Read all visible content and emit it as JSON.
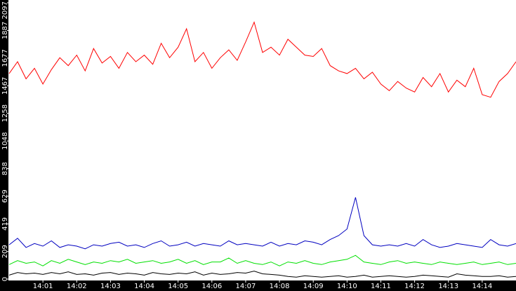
{
  "chart_data": {
    "type": "line",
    "categories": [
      null,
      null,
      null,
      null,
      "14:01",
      null,
      null,
      null,
      "14:02",
      null,
      null,
      null,
      "14:03",
      null,
      null,
      null,
      "14:04",
      null,
      null,
      null,
      "14:05",
      null,
      null,
      null,
      "14:06",
      null,
      null,
      null,
      "14:07",
      null,
      null,
      null,
      "14:08",
      null,
      null,
      null,
      "14:09",
      null,
      null,
      null,
      "14:10",
      null,
      null,
      null,
      "14:11",
      null,
      null,
      null,
      "14:12",
      null,
      null,
      null,
      "14:13",
      null,
      null,
      null,
      "14:14",
      null,
      null,
      null,
      null
    ],
    "ylim": [
      0,
      2097
    ],
    "yticks": [
      0,
      209,
      419,
      629,
      838,
      1048,
      1258,
      1467,
      1677,
      1887,
      2097
    ],
    "series": [
      {
        "color": "#ff0000",
        "values": [
          1560,
          1650,
          1520,
          1600,
          1480,
          1590,
          1680,
          1620,
          1700,
          1580,
          1750,
          1640,
          1690,
          1600,
          1720,
          1650,
          1700,
          1630,
          1790,
          1680,
          1760,
          1900,
          1650,
          1720,
          1600,
          1680,
          1740,
          1660,
          1800,
          1950,
          1720,
          1760,
          1700,
          1820,
          1760,
          1700,
          1690,
          1750,
          1620,
          1580,
          1560,
          1600,
          1520,
          1570,
          1480,
          1430,
          1500,
          1450,
          1420,
          1530,
          1460,
          1560,
          1420,
          1510,
          1460,
          1600,
          1400,
          1380,
          1500,
          1560,
          1650
        ]
      },
      {
        "color": "#0000c0",
        "values": [
          260,
          310,
          240,
          270,
          250,
          290,
          240,
          260,
          250,
          230,
          260,
          250,
          270,
          280,
          250,
          260,
          240,
          270,
          290,
          250,
          260,
          280,
          250,
          270,
          260,
          250,
          290,
          260,
          270,
          260,
          250,
          280,
          250,
          270,
          260,
          290,
          280,
          260,
          300,
          330,
          380,
          620,
          330,
          260,
          250,
          260,
          250,
          270,
          250,
          300,
          260,
          240,
          250,
          270,
          260,
          250,
          240,
          300,
          260,
          250,
          270
        ]
      },
      {
        "color": "#00e000",
        "values": [
          110,
          140,
          120,
          130,
          100,
          140,
          120,
          150,
          130,
          110,
          130,
          120,
          140,
          130,
          150,
          120,
          130,
          140,
          120,
          130,
          150,
          120,
          140,
          110,
          130,
          130,
          160,
          120,
          140,
          120,
          110,
          130,
          100,
          130,
          120,
          140,
          120,
          110,
          130,
          140,
          150,
          180,
          130,
          120,
          110,
          130,
          140,
          120,
          130,
          120,
          110,
          130,
          120,
          110,
          120,
          130,
          110,
          120,
          130,
          110,
          120
        ]
      },
      {
        "color": "#000000",
        "values": [
          30,
          50,
          40,
          45,
          35,
          50,
          40,
          55,
          35,
          40,
          30,
          45,
          50,
          35,
          45,
          40,
          30,
          50,
          40,
          35,
          45,
          40,
          55,
          30,
          45,
          35,
          40,
          50,
          45,
          60,
          40,
          35,
          30,
          20,
          15,
          25,
          20,
          15,
          20,
          25,
          15,
          20,
          30,
          15,
          20,
          25,
          20,
          15,
          20,
          30,
          25,
          20,
          15,
          40,
          30,
          25,
          20,
          20,
          25,
          15,
          20
        ]
      }
    ]
  }
}
